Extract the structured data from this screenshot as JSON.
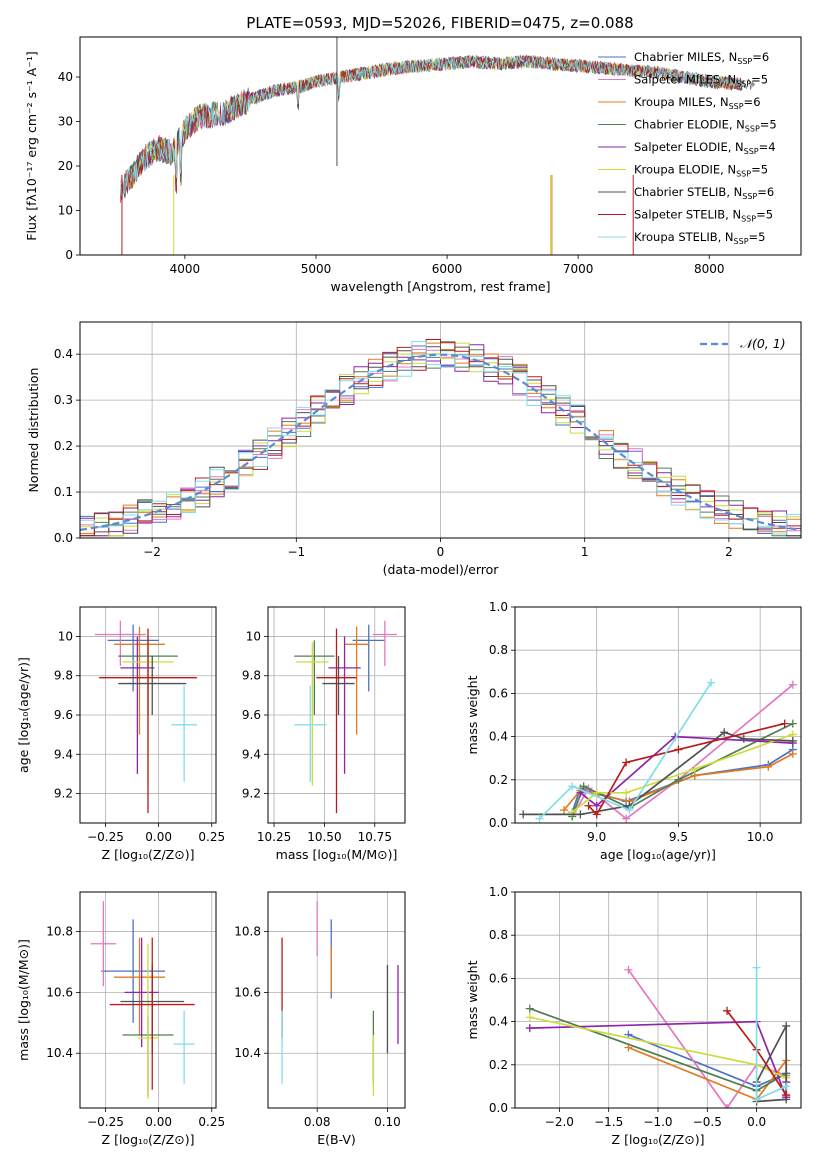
{
  "figure_title": "PLATE=0593, MJD=52026, FIBERID=0475, z=0.088",
  "models": [
    {
      "name": "Chabrier MILES",
      "nssp": "6",
      "color": "#4c72c4"
    },
    {
      "name": "Salpeter MILES",
      "nssp": "5",
      "color": "#e377c2"
    },
    {
      "name": "Kroupa MILES",
      "nssp": "6",
      "color": "#e07b22"
    },
    {
      "name": "Chabrier ELODIE",
      "nssp": "5",
      "color": "#4f7f4f"
    },
    {
      "name": "Salpeter ELODIE",
      "nssp": "4",
      "color": "#8e24aa"
    },
    {
      "name": "Kroupa ELODIE",
      "nssp": "5",
      "color": "#cddc39"
    },
    {
      "name": "Chabrier STELIB",
      "nssp": "6",
      "color": "#505050"
    },
    {
      "name": "Salpeter STELIB",
      "nssp": "5",
      "color": "#b71c1c"
    },
    {
      "name": "Kroupa STELIB",
      "nssp": "5",
      "color": "#80deea"
    }
  ],
  "chart_data": [
    {
      "id": "spectrum",
      "type": "line",
      "xlabel": "wavelength [Angstrom, rest frame]",
      "ylabel": "Flux [fλ10⁻¹⁷ erg cm⁻² s⁻¹ A⁻¹]",
      "xlim": [
        3200,
        8700
      ],
      "ylim": [
        0,
        49
      ],
      "xticks": [
        4000,
        5000,
        6000,
        7000,
        8000
      ],
      "yticks": [
        0,
        10,
        20,
        30,
        40
      ],
      "x": [
        3500,
        3600,
        3700,
        3800,
        3900,
        4000,
        4100,
        4200,
        4300,
        4400,
        4500,
        4600,
        4700,
        4800,
        4900,
        5000,
        5200,
        5400,
        5600,
        5800,
        6000,
        6200,
        6400,
        6600,
        6800,
        7000,
        7200,
        7400,
        7600,
        7800,
        8000,
        8200,
        8400
      ],
      "y": [
        14,
        18,
        22,
        24,
        23,
        28,
        31,
        31.5,
        32,
        33.5,
        35,
        36,
        37,
        37.5,
        38,
        39,
        40,
        41,
        42,
        42.5,
        43,
        43.5,
        43,
        43.5,
        43,
        42.5,
        42,
        41.5,
        41,
        40,
        39,
        38.5,
        38
      ]
    },
    {
      "id": "residuals",
      "type": "histogram",
      "xlabel": "(data-model)/error",
      "ylabel": "Normed distribution",
      "xlim": [
        -2.5,
        2.5
      ],
      "ylim": [
        0,
        0.47
      ],
      "xticks": [
        -2,
        -1,
        0,
        1,
        2
      ],
      "yticks": [
        0.0,
        0.1,
        0.2,
        0.3,
        0.4
      ],
      "legend": "𝒩(0, 1)",
      "legend_position": "top-right",
      "reference_curve": "normal(0,1)"
    },
    {
      "id": "age-vs-Z",
      "type": "errorbar",
      "xlabel": "Z [log₁₀(Z/Z⊙)]",
      "ylabel": "age  [log₁₀(age/yr)]",
      "xlim": [
        -0.37,
        0.27
      ],
      "ylim": [
        9.05,
        10.15
      ],
      "xticks": [
        -0.25,
        0.0,
        0.25
      ],
      "xticklabels": [
        "−0.25",
        "0.00",
        "0.25"
      ],
      "yticks": [
        9.2,
        9.4,
        9.6,
        9.8,
        10.0
      ],
      "points": [
        {
          "x": -0.12,
          "xerr": 0.12,
          "y": 9.98,
          "ylo": 9.72,
          "yhi": 10.06
        },
        {
          "x": -0.18,
          "xerr": 0.12,
          "y": 10.01,
          "ylo": 9.85,
          "yhi": 10.08
        },
        {
          "x": -0.09,
          "xerr": 0.12,
          "y": 9.96,
          "ylo": 9.5,
          "yhi": 10.05
        },
        {
          "x": -0.05,
          "xerr": 0.14,
          "y": 9.9,
          "ylo": 9.6,
          "yhi": 10.0
        },
        {
          "x": -0.1,
          "xerr": 0.08,
          "y": 9.84,
          "ylo": 9.3,
          "yhi": 10.0
        },
        {
          "x": -0.05,
          "xerr": 0.12,
          "y": 9.87,
          "ylo": 9.24,
          "yhi": 9.97
        },
        {
          "x": -0.03,
          "xerr": 0.16,
          "y": 9.76,
          "ylo": 9.6,
          "yhi": 9.9
        },
        {
          "x": -0.05,
          "xerr": 0.23,
          "y": 9.79,
          "ylo": 9.1,
          "yhi": 10.04
        },
        {
          "x": 0.12,
          "xerr": 0.06,
          "y": 9.55,
          "ylo": 9.26,
          "yhi": 9.75
        }
      ]
    },
    {
      "id": "age-vs-mass",
      "type": "errorbar",
      "xlabel": "mass [log₁₀(M/M⊙)]",
      "ylabel": "",
      "xlim": [
        10.22,
        10.9
      ],
      "ylim": [
        9.05,
        10.15
      ],
      "xticks": [
        10.25,
        10.5,
        10.75
      ],
      "xticklabels": [
        "10.25",
        "10.50",
        "10.75"
      ],
      "yticks": [
        9.2,
        9.4,
        9.6,
        9.8,
        10.0
      ],
      "points": [
        {
          "x": 10.72,
          "xerr": 0.08,
          "y": 9.98,
          "ylo": 9.72,
          "yhi": 10.06
        },
        {
          "x": 10.8,
          "xerr": 0.06,
          "y": 10.01,
          "ylo": 9.85,
          "yhi": 10.08
        },
        {
          "x": 10.66,
          "xerr": 0.06,
          "y": 9.96,
          "ylo": 9.5,
          "yhi": 10.05
        },
        {
          "x": 10.45,
          "xerr": 0.1,
          "y": 9.9,
          "ylo": 9.6,
          "yhi": 9.98
        },
        {
          "x": 10.6,
          "xerr": 0.08,
          "y": 9.84,
          "ylo": 9.3,
          "yhi": 10.0
        },
        {
          "x": 10.44,
          "xerr": 0.08,
          "y": 9.87,
          "ylo": 9.24,
          "yhi": 9.97
        },
        {
          "x": 10.57,
          "xerr": 0.08,
          "y": 9.76,
          "ylo": 9.6,
          "yhi": 9.9
        },
        {
          "x": 10.56,
          "xerr": 0.1,
          "y": 9.79,
          "ylo": 9.1,
          "yhi": 10.04
        },
        {
          "x": 10.43,
          "xerr": 0.08,
          "y": 9.55,
          "ylo": 9.26,
          "yhi": 9.75
        }
      ]
    },
    {
      "id": "massweight-vs-age",
      "type": "line",
      "xlabel": "age  [log₁₀(age/yr)]",
      "ylabel": "mass weight",
      "xlim": [
        8.5,
        10.25
      ],
      "ylim": [
        0,
        1
      ],
      "xticks": [
        9.0,
        9.5,
        10.0
      ],
      "xticklabels": [
        "9.0",
        "9.5",
        "10.0"
      ],
      "yticks": [
        0.0,
        0.2,
        0.4,
        0.6,
        0.8,
        1.0
      ],
      "yticklabels": [
        "0.0",
        "0.2",
        "0.4",
        "0.6",
        "0.8",
        "1.0"
      ],
      "grid": true,
      "series": [
        {
          "x": [
            8.85,
            8.9,
            9.18,
            9.6,
            10.05,
            10.2
          ],
          "y": [
            0.05,
            0.16,
            0.1,
            0.22,
            0.27,
            0.34
          ]
        },
        {
          "x": [
            8.85,
            8.95,
            9.18,
            9.5,
            10.2
          ],
          "y": [
            0.03,
            0.16,
            0.02,
            0.2,
            0.64
          ]
        },
        {
          "x": [
            8.8,
            8.9,
            9.2,
            9.6,
            10.05,
            10.2
          ],
          "y": [
            0.06,
            0.15,
            0.1,
            0.22,
            0.26,
            0.32
          ]
        },
        {
          "x": [
            8.85,
            8.92,
            9.2,
            9.5,
            10.2
          ],
          "y": [
            0.03,
            0.17,
            0.07,
            0.2,
            0.46
          ]
        },
        {
          "x": [
            8.9,
            9.0,
            9.48,
            10.2
          ],
          "y": [
            0.14,
            0.08,
            0.4,
            0.37
          ]
        },
        {
          "x": [
            8.85,
            9.0,
            9.18,
            9.6,
            10.2
          ],
          "y": [
            0.05,
            0.14,
            0.14,
            0.25,
            0.41
          ]
        },
        {
          "x": [
            8.55,
            8.9,
            9.2,
            9.78,
            9.9,
            10.2
          ],
          "y": [
            0.04,
            0.04,
            0.08,
            0.42,
            0.39,
            0.38
          ]
        },
        {
          "x": [
            8.95,
            9.0,
            9.18,
            9.5,
            10.15
          ],
          "y": [
            0.08,
            0.04,
            0.28,
            0.34,
            0.46
          ]
        },
        {
          "x": [
            8.65,
            8.85,
            9.2,
            9.7
          ],
          "y": [
            0.02,
            0.17,
            0.06,
            0.65
          ]
        }
      ]
    },
    {
      "id": "mass-vs-Z",
      "type": "errorbar",
      "xlabel": "Z [log₁₀(Z/Z⊙)]",
      "ylabel": "mass [log₁₀(M/M⊙)]",
      "xlim": [
        -0.37,
        0.27
      ],
      "ylim": [
        10.22,
        10.93
      ],
      "xticks": [
        -0.25,
        0.0,
        0.25
      ],
      "xticklabels": [
        "−0.25",
        "0.00",
        "0.25"
      ],
      "yticks": [
        10.4,
        10.6,
        10.8
      ],
      "yticklabels": [
        "10.4",
        "10.6",
        "10.8"
      ],
      "points": [
        {
          "x": -0.12,
          "xerr": 0.15,
          "y": 10.67,
          "ylo": 10.5,
          "yhi": 10.84
        },
        {
          "x": -0.26,
          "xerr": 0.06,
          "y": 10.76,
          "ylo": 10.62,
          "yhi": 10.9
        },
        {
          "x": -0.09,
          "xerr": 0.12,
          "y": 10.65,
          "ylo": 10.46,
          "yhi": 10.78
        },
        {
          "x": -0.05,
          "xerr": 0.12,
          "y": 10.46,
          "ylo": 10.26,
          "yhi": 10.52
        },
        {
          "x": -0.08,
          "xerr": 0.08,
          "y": 10.6,
          "ylo": 10.42,
          "yhi": 10.78
        },
        {
          "x": -0.05,
          "xerr": 0.05,
          "y": 10.45,
          "ylo": 10.25,
          "yhi": 10.76
        },
        {
          "x": -0.03,
          "xerr": 0.15,
          "y": 10.57,
          "ylo": 10.4,
          "yhi": 10.69
        },
        {
          "x": -0.03,
          "xerr": 0.2,
          "y": 10.56,
          "ylo": 10.28,
          "yhi": 10.78
        },
        {
          "x": 0.12,
          "xerr": 0.05,
          "y": 10.43,
          "ylo": 10.3,
          "yhi": 10.54
        }
      ]
    },
    {
      "id": "mass-vs-EBV",
      "type": "errorbar",
      "xlabel": "E(B-V)",
      "ylabel": "",
      "xlim": [
        0.066,
        0.105
      ],
      "ylim": [
        10.22,
        10.93
      ],
      "xticks": [
        0.08,
        0.1
      ],
      "xticklabels": [
        "0.08",
        "0.10"
      ],
      "yticks": [
        10.4,
        10.6,
        10.8
      ],
      "yticklabels": [
        "10.4",
        "10.6",
        "10.8"
      ],
      "points": [
        {
          "x": 0.084,
          "ylo": 10.58,
          "yhi": 10.84
        },
        {
          "x": 0.08,
          "ylo": 10.72,
          "yhi": 10.9
        },
        {
          "x": 0.084,
          "ylo": 10.6,
          "yhi": 10.75
        },
        {
          "x": 0.096,
          "ylo": 10.3,
          "yhi": 10.54
        },
        {
          "x": 0.103,
          "ylo": 10.43,
          "yhi": 10.69
        },
        {
          "x": 0.096,
          "ylo": 10.26,
          "yhi": 10.46
        },
        {
          "x": 0.1,
          "ylo": 10.4,
          "yhi": 10.69
        },
        {
          "x": 0.07,
          "ylo": 10.45,
          "yhi": 10.78
        },
        {
          "x": 0.07,
          "ylo": 10.3,
          "yhi": 10.54
        }
      ]
    },
    {
      "id": "massweight-vs-Z",
      "type": "line",
      "xlabel": "Z [log₁₀(Z/Z⊙)]",
      "ylabel": "mass weight",
      "xlim": [
        -2.45,
        0.45
      ],
      "ylim": [
        0,
        1
      ],
      "xticks": [
        -2.0,
        -1.5,
        -1.0,
        -0.5,
        0.0
      ],
      "xticklabels": [
        "−2.0",
        "−1.5",
        "−1.0",
        "−0.5",
        "0.0"
      ],
      "yticks": [
        0.0,
        0.2,
        0.4,
        0.6,
        0.8,
        1.0
      ],
      "yticklabels": [
        "0.0",
        "0.2",
        "0.4",
        "0.6",
        "0.8",
        "1.0"
      ],
      "grid": true,
      "series": [
        {
          "x": [
            -1.3,
            0.0,
            0.3,
            0.3
          ],
          "y": [
            0.34,
            0.1,
            0.16,
            0.05
          ]
        },
        {
          "x": [
            -1.3,
            -0.3,
            0.0,
            0.3
          ],
          "y": [
            0.64,
            0.0,
            0.2,
            0.15
          ]
        },
        {
          "x": [
            -1.3,
            0.0,
            0.3,
            0.3
          ],
          "y": [
            0.28,
            0.04,
            0.22,
            0.06
          ]
        },
        {
          "x": [
            -2.3,
            0.0,
            0.3
          ],
          "y": [
            0.46,
            0.08,
            0.16
          ]
        },
        {
          "x": [
            -2.3,
            0.0,
            0.3,
            0.3
          ],
          "y": [
            0.37,
            0.4,
            0.05,
            0.12
          ]
        },
        {
          "x": [
            -2.3,
            0.0,
            0.3
          ],
          "y": [
            0.42,
            0.2,
            0.14
          ]
        },
        {
          "x": [
            0.0,
            0.3,
            0.3,
            0.0
          ],
          "y": [
            0.03,
            0.04,
            0.38,
            0.12
          ]
        },
        {
          "x": [
            -0.3,
            0.0,
            0.3
          ],
          "y": [
            0.45,
            0.27,
            0.06
          ]
        },
        {
          "x": [
            0.0,
            0.0,
            0.3
          ],
          "y": [
            0.65,
            0.04,
            0.1
          ]
        }
      ]
    }
  ]
}
